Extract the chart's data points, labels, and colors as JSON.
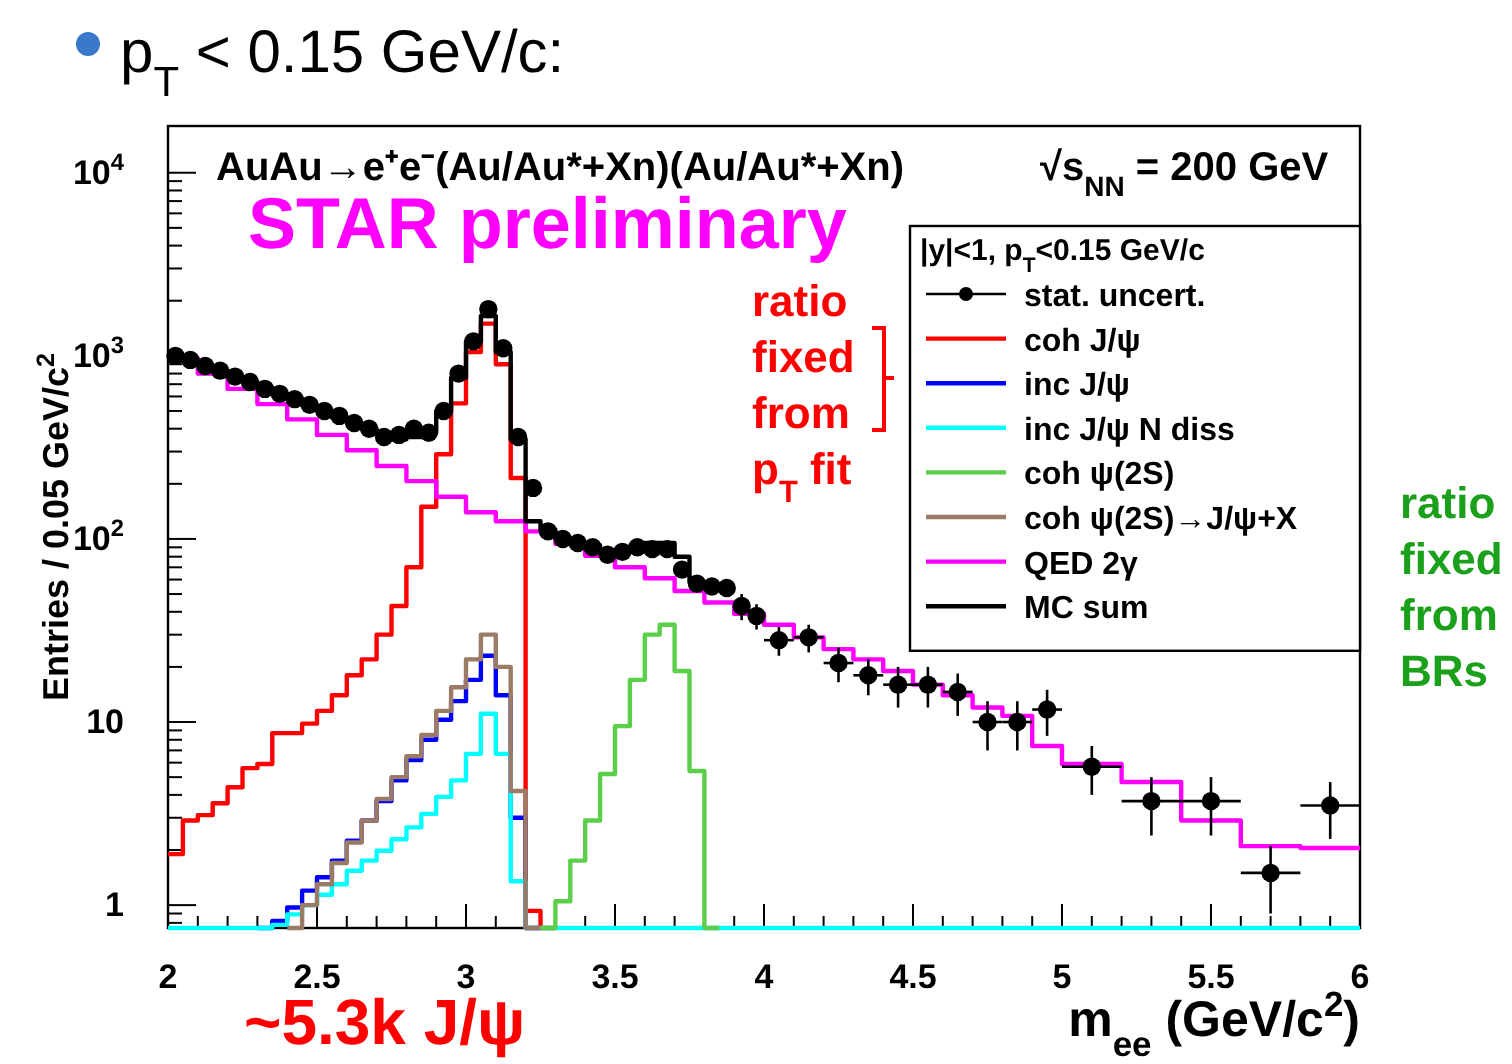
{
  "chart_data": {
    "type": "histogram",
    "title": "p$_{T}$ < 0.15 GeV/c:",
    "subtitle": "AuAu→e⁺e⁻(Au/Au*+Xn)(Au/Au*+Xn)",
    "xlabel": "m$_{ee}$ (GeV/c$^{2}$)",
    "ylabel": "Entries / 0.05 GeV/c$^{2}$",
    "legend_title": "|y|<1, p$_{T}$<0.15 GeV/c",
    "annotations": [
      "√s$_{NN}$ = 200 GeV",
      "STAR preliminary",
      "ratio fixed from p$_{T}$ fit",
      "ratio fixed from BRs",
      "~5.3k J/ψ"
    ],
    "log": "y",
    "legend": "top right",
    "marker": "circle",
    "line_style": "solid",
    "xlim": [
      2,
      6
    ],
    "xticks": [
      2,
      {
        "value": 2.1,
        "label": null
      },
      {
        "value": 2.2,
        "label": null
      },
      {
        "value": 2.3,
        "label": null
      },
      {
        "value": 2.4,
        "label": null
      },
      2.5,
      {
        "value": 2.6,
        "label": null
      },
      {
        "value": 2.7,
        "label": null
      },
      {
        "value": 2.8,
        "label": null
      },
      {
        "value": 2.9,
        "label": null
      },
      3,
      {
        "value": 3.1,
        "label": null
      },
      {
        "value": 3.2,
        "label": null
      },
      {
        "value": 3.3,
        "label": null
      },
      {
        "value": 3.4,
        "label": null
      },
      3.5,
      {
        "value": 3.6,
        "label": null
      },
      {
        "value": 3.7,
        "label": null
      },
      {
        "value": 3.8,
        "label": null
      },
      {
        "value": 3.9,
        "label": null
      },
      4,
      {
        "value": 4.1,
        "label": null
      },
      {
        "value": 4.2,
        "label": null
      },
      {
        "value": 4.3,
        "label": null
      },
      {
        "value": 4.4,
        "label": null
      },
      4.5,
      {
        "value": 4.6,
        "label": null
      },
      {
        "value": 4.7,
        "label": null
      },
      {
        "value": 4.8,
        "label": null
      },
      {
        "value": 4.9,
        "label": null
      },
      5,
      {
        "value": 5.1,
        "label": null
      },
      {
        "value": 5.2,
        "label": null
      },
      {
        "value": 5.3,
        "label": null
      },
      {
        "value": 5.4,
        "label": null
      },
      5.5,
      {
        "value": 5.6,
        "label": null
      },
      {
        "value": 5.7,
        "label": null
      },
      {
        "value": 5.8,
        "label": null
      },
      {
        "value": 5.9,
        "label": null
      },
      6
    ],
    "ylim": [
      0.75,
      18000
    ],
    "yticks": [
      {
        "value": 0.8,
        "label": null
      },
      {
        "value": 0.9,
        "label": null
      },
      1,
      {
        "value": 2,
        "label": null
      },
      {
        "value": 3,
        "label": null
      },
      {
        "value": 4,
        "label": null
      },
      {
        "value": 5,
        "label": null
      },
      {
        "value": 6,
        "label": null
      },
      {
        "value": 7,
        "label": null
      },
      {
        "value": 8,
        "label": null
      },
      {
        "value": 9,
        "label": null
      },
      10,
      {
        "value": 20,
        "label": null
      },
      {
        "value": 30,
        "label": null
      },
      {
        "value": 40,
        "label": null
      },
      {
        "value": 50,
        "label": null
      },
      {
        "value": 60,
        "label": null
      },
      {
        "value": 70,
        "label": null
      },
      {
        "value": 80,
        "label": null
      },
      {
        "value": 90,
        "label": null
      },
      {
        "value": 100,
        "label": "10$^{2}$"
      },
      {
        "value": 200,
        "label": null
      },
      {
        "value": 300,
        "label": null
      },
      {
        "value": 400,
        "label": null
      },
      {
        "value": 500,
        "label": null
      },
      {
        "value": 600,
        "label": null
      },
      {
        "value": 700,
        "label": null
      },
      {
        "value": 800,
        "label": null
      },
      {
        "value": 900,
        "label": null
      },
      {
        "value": 1000,
        "label": "10$^{3}$"
      },
      {
        "value": 2000,
        "label": null
      },
      {
        "value": 3000,
        "label": null
      },
      {
        "value": 4000,
        "label": null
      },
      {
        "value": 5000,
        "label": null
      },
      {
        "value": 6000,
        "label": null
      },
      {
        "value": 7000,
        "label": null
      },
      {
        "value": 8000,
        "label": null
      },
      {
        "value": 9000,
        "label": null
      },
      {
        "value": 10000,
        "label": "10$^{4}$"
      }
    ],
    "series": [
      {
        "name": "stat. uncert.",
        "type": "scatter",
        "color": "#000000",
        "x": [
          2.025,
          2.075,
          2.125,
          2.175,
          2.225,
          2.275,
          2.325,
          2.375,
          2.425,
          2.475,
          2.525,
          2.575,
          2.625,
          2.675,
          2.725,
          2.775,
          2.825,
          2.875,
          2.925,
          2.975,
          3.025,
          3.075,
          3.125,
          3.175,
          3.225,
          3.275,
          3.325,
          3.375,
          3.425,
          3.475,
          3.525,
          3.575,
          3.625,
          3.675,
          3.725,
          3.775,
          3.825,
          3.875,
          3.925,
          3.975,
          4.05,
          4.15,
          4.25,
          4.35,
          4.45,
          4.55,
          4.65,
          4.75,
          4.85,
          4.95,
          5.1,
          5.3,
          5.5,
          5.7,
          5.9
        ],
        "values": [
          1000,
          950,
          880,
          830,
          770,
          720,
          660,
          620,
          580,
          540,
          500,
          470,
          430,
          400,
          360,
          370,
          400,
          380,
          500,
          800,
          1200,
          1800,
          1100,
          360,
          190,
          110,
          100,
          95,
          90,
          82,
          85,
          90,
          88,
          88,
          68,
          57,
          55,
          54,
          43,
          38,
          28,
          29,
          21,
          18,
          16,
          16,
          14.6,
          10,
          10,
          11.7,
          5.7,
          3.7,
          3.7,
          1.5,
          3.5
        ],
        "errors": [
          null,
          null,
          null,
          null,
          null,
          null,
          null,
          null,
          null,
          null,
          null,
          null,
          null,
          null,
          null,
          null,
          null,
          null,
          null,
          null,
          null,
          null,
          null,
          null,
          null,
          null,
          null,
          null,
          null,
          null,
          null,
          null,
          null,
          null,
          null,
          null,
          null,
          null,
          7,
          6,
          5,
          5,
          4.5,
          4,
          4,
          4,
          3.8,
          3,
          3,
          3.3,
          1.7,
          1.3,
          1.3,
          0.6,
          1.2
        ],
        "xerrors": [
          0.025,
          0.025,
          0.025,
          0.025,
          0.025,
          0.025,
          0.025,
          0.025,
          0.025,
          0.025,
          0.025,
          0.025,
          0.025,
          0.025,
          0.025,
          0.025,
          0.025,
          0.025,
          0.025,
          0.025,
          0.025,
          0.025,
          0.025,
          0.025,
          0.025,
          0.025,
          0.025,
          0.025,
          0.025,
          0.025,
          0.025,
          0.025,
          0.025,
          0.025,
          0.025,
          0.025,
          0.025,
          0.025,
          0.025,
          0.025,
          0.05,
          0.05,
          0.05,
          0.05,
          0.05,
          0.05,
          0.05,
          0.05,
          0.05,
          0.05,
          0.1,
          0.1,
          0.1,
          0.1,
          0.1
        ]
      },
      {
        "name": "coh J/ψ",
        "color": "#ff0000",
        "bins": [
          2,
          2.05,
          2.1,
          2.15,
          2.2,
          2.25,
          2.3,
          2.35,
          2.4,
          2.45,
          2.5,
          2.55,
          2.6,
          2.65,
          2.7,
          2.75,
          2.8,
          2.85,
          2.9,
          2.95,
          3,
          3.05,
          3.1,
          3.15,
          3.2,
          3.25,
          3.3
        ],
        "values": [
          1.9,
          2.9,
          3.1,
          3.6,
          4.4,
          5.6,
          5.9,
          8.7,
          8.7,
          9.8,
          11.5,
          14,
          18,
          22,
          30,
          43,
          70,
          150,
          290,
          550,
          1050,
          1500,
          900,
          215,
          0.93,
          null
        ]
      },
      {
        "name": "inc J/ψ",
        "color": "#0000ff",
        "bins": [
          2.3,
          2.35,
          2.4,
          2.45,
          2.5,
          2.55,
          2.6,
          2.65,
          2.7,
          2.75,
          2.8,
          2.85,
          2.9,
          2.95,
          3,
          3.05,
          3.1,
          3.15,
          3.2,
          3.25
        ],
        "values": [
          null,
          0.82,
          0.97,
          1.2,
          1.42,
          1.75,
          2.25,
          2.9,
          3.7,
          4.8,
          6.2,
          8,
          10.3,
          13,
          17,
          23,
          14,
          3,
          null
        ]
      },
      {
        "name": "inc J/ψ N diss",
        "color": "#00ffff",
        "bins": [
          2,
          2.35,
          2.4,
          2.45,
          2.5,
          2.55,
          2.6,
          2.65,
          2.7,
          2.75,
          2.8,
          2.85,
          2.9,
          2.95,
          3,
          3.05,
          3.1,
          3.15,
          3.2,
          6
        ],
        "values": [
          null,
          0.78,
          0.89,
          1,
          1.14,
          1.3,
          1.54,
          1.75,
          1.98,
          2.29,
          2.66,
          3.15,
          3.9,
          4.8,
          6.7,
          11.1,
          6.7,
          1.35,
          null
        ]
      },
      {
        "name": "coh ψ(2S)",
        "color": "#5ccf4a",
        "bins": [
          3.25,
          3.3,
          3.35,
          3.4,
          3.45,
          3.5,
          3.55,
          3.6,
          3.65,
          3.7,
          3.75,
          3.8,
          3.85
        ],
        "values": [
          null,
          1.05,
          1.75,
          2.9,
          5.2,
          9.5,
          17,
          30,
          34,
          19,
          5.4,
          null
        ]
      },
      {
        "name": "coh ψ(2S)→J/ψ+X",
        "color": "#9c7b66",
        "bins": [
          2.4,
          2.45,
          2.5,
          2.55,
          2.6,
          2.65,
          2.7,
          2.75,
          2.8,
          2.85,
          2.9,
          2.95,
          3,
          3.05,
          3.1,
          3.15,
          3.2,
          3.25
        ],
        "values": [
          null,
          1,
          1.3,
          1.7,
          2.2,
          2.9,
          3.8,
          5,
          6.5,
          8.5,
          11.5,
          15.5,
          22,
          30,
          20,
          4.2,
          null
        ]
      },
      {
        "name": "QED 2γ",
        "color": "#ff00ff",
        "bins": [
          2,
          2.1,
          2.2,
          2.3,
          2.4,
          2.5,
          2.6,
          2.7,
          2.8,
          2.9,
          3,
          3.1,
          3.2,
          3.3,
          3.4,
          3.5,
          3.6,
          3.7,
          3.8,
          3.9,
          4,
          4.1,
          4.2,
          4.3,
          4.4,
          4.5,
          4.6,
          4.7,
          4.8,
          4.9,
          5,
          5.2,
          5.4,
          5.6,
          5.8,
          6
        ],
        "values": [
          970,
          800,
          660,
          545,
          450,
          370,
          305,
          250,
          207,
          170,
          140,
          125,
          110,
          94,
          81,
          70,
          61,
          52,
          45,
          39,
          34,
          29,
          25,
          22,
          19,
          16,
          14,
          12,
          10.8,
          7.4,
          5.9,
          4.7,
          2.9,
          2.1,
          2.05
        ]
      },
      {
        "name": "MC sum",
        "color": "#000000",
        "bins": [
          2,
          2.05,
          2.1,
          2.15,
          2.2,
          2.25,
          2.3,
          2.35,
          2.4,
          2.45,
          2.5,
          2.55,
          2.6,
          2.65,
          2.7,
          2.75,
          2.8,
          2.85,
          2.9,
          2.95,
          3,
          3.05,
          3.1,
          3.15,
          3.2,
          3.25,
          3.3,
          3.35,
          3.4,
          3.45,
          3.5,
          3.55,
          3.6,
          3.65,
          3.7,
          3.75,
          3.8
        ],
        "values": [
          1000,
          950,
          890,
          830,
          770,
          720,
          670,
          620,
          580,
          540,
          500,
          460,
          430,
          400,
          370,
          350,
          360,
          380,
          500,
          760,
          1200,
          1650,
          1050,
          350,
          125,
          112,
          100,
          95,
          92,
          86,
          85,
          88,
          95,
          95,
          80,
          58
        ]
      }
    ]
  }
}
